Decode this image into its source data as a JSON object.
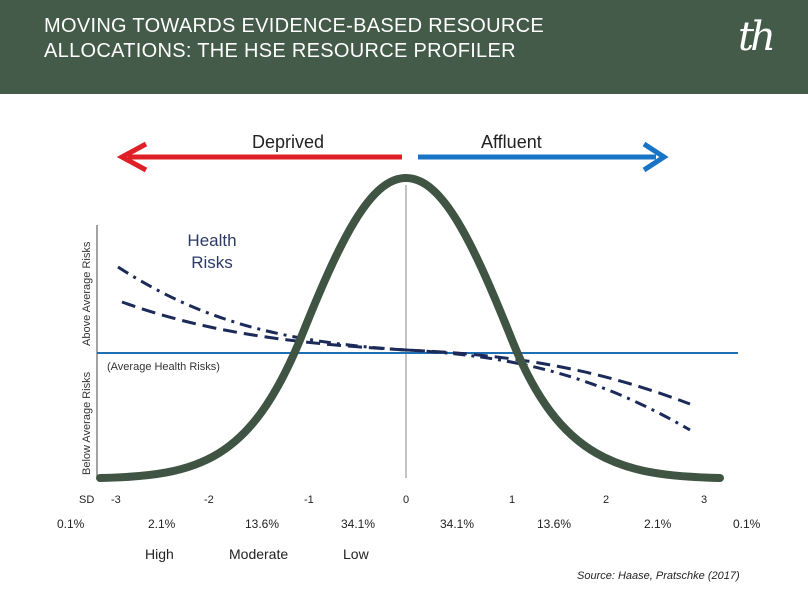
{
  "header": {
    "title_line1": "MOVING TOWARDS EVIDENCE-BASED RESOURCE",
    "title_line2": "ALLOCATIONS: THE HSE RESOURCE PROFILER",
    "logo_text": "th",
    "background_color": "#435b48"
  },
  "arrows": {
    "deprived_label": "Deprived",
    "affluent_label": "Affluent",
    "deprived_color": "#e02027",
    "affluent_color": "#1874c4"
  },
  "axis": {
    "above_label": "Above Average Risks",
    "below_label": "Below Average Risks"
  },
  "health_risks": {
    "line1": "Health",
    "line2": "Risks"
  },
  "average_label": "(Average Health Risks)",
  "sd": {
    "label": "SD",
    "ticks": [
      "-3",
      "-2",
      "-1",
      "0",
      "1",
      "2",
      "3"
    ]
  },
  "percentages": [
    "0.1%",
    "2.1%",
    "13.6%",
    "34.1%",
    "34.1%",
    "13.6%",
    "2.1%",
    "0.1%"
  ],
  "risk_levels": [
    "High",
    "Moderate",
    "Low"
  ],
  "source": "Source: Haase, Pratschke (2017)",
  "colors": {
    "bell_curve": "#3f5443",
    "average_line": "#1f6fb5",
    "risk_lines": "#1c2a5a"
  }
}
